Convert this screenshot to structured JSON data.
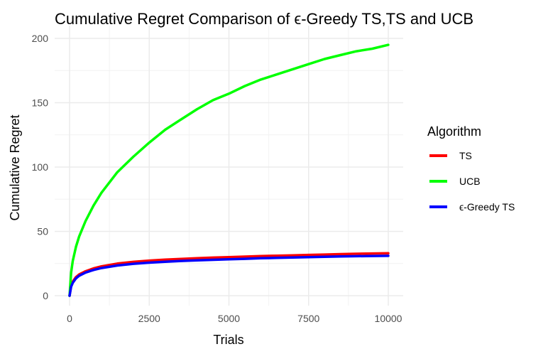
{
  "chart_data": {
    "type": "line",
    "title": "Cumulative Regret Comparison of ϵ-Greedy TS,TS and UCB",
    "xlabel": "Trials",
    "ylabel": "Cumulative Regret",
    "xlim": [
      0,
      10000
    ],
    "ylim": [
      0,
      200
    ],
    "xticks": [
      0,
      2500,
      5000,
      7500,
      10000
    ],
    "yticks": [
      0,
      50,
      100,
      150,
      200
    ],
    "grid": true,
    "legend": {
      "title": "Algorithm",
      "position": "right"
    },
    "x": [
      0,
      50,
      100,
      200,
      300,
      500,
      750,
      1000,
      1500,
      2000,
      2500,
      3000,
      3500,
      4000,
      4500,
      5000,
      5500,
      6000,
      6500,
      7000,
      7500,
      8000,
      8500,
      9000,
      9500,
      10000
    ],
    "series": [
      {
        "name": "TS",
        "color": "#ff0000",
        "values": [
          0,
          8,
          11,
          14.5,
          16.5,
          19,
          21.2,
          22.8,
          25,
          26.3,
          27.3,
          28,
          28.6,
          29.1,
          29.6,
          30,
          30.4,
          30.8,
          31.1,
          31.4,
          31.7,
          32,
          32.3,
          32.6,
          32.8,
          33
        ]
      },
      {
        "name": "UCB",
        "color": "#00ff00",
        "values": [
          0,
          18,
          27,
          38,
          46,
          58,
          70,
          80,
          96,
          108,
          119,
          129,
          137,
          145,
          152,
          157,
          163,
          168,
          172,
          176,
          180,
          184,
          187,
          190,
          192,
          195
        ]
      },
      {
        "name": "ϵ-Greedy TS",
        "color": "#0000ff",
        "values": [
          0,
          7,
          10,
          13.5,
          15.5,
          18,
          20,
          21.5,
          23.5,
          24.8,
          25.7,
          26.4,
          27,
          27.5,
          27.9,
          28.3,
          28.7,
          29.1,
          29.4,
          29.7,
          30,
          30.2,
          30.5,
          30.7,
          30.9,
          31
        ]
      }
    ]
  }
}
